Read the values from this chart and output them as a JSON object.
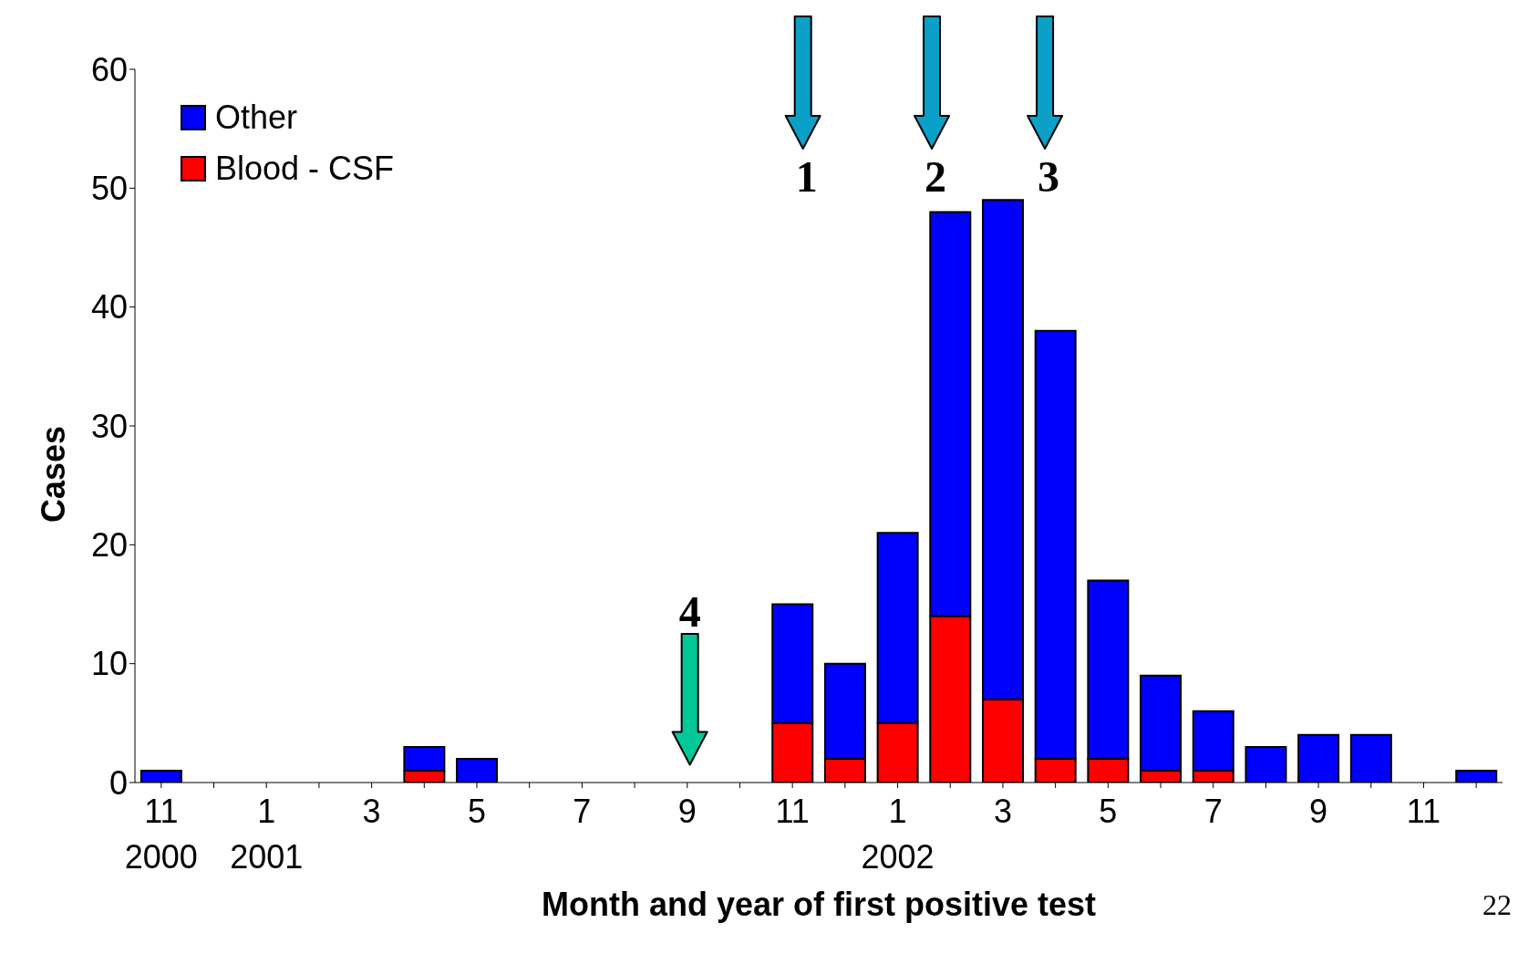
{
  "chart_data": {
    "type": "bar",
    "stacked": true,
    "xlabel": "Month and year of first positive test",
    "ylabel": "Cases",
    "categories": [
      "11\n2000",
      null,
      "1\n2001",
      null,
      "3",
      null,
      "5",
      null,
      "7",
      null,
      "9",
      null,
      "11",
      null,
      "1\n2002",
      null,
      "3",
      null,
      "5",
      null,
      "7",
      null,
      "9",
      null,
      "11",
      null
    ],
    "series": [
      {
        "name": "Blood - CSF",
        "color": "#ff0000",
        "values": [
          0,
          0,
          0,
          0,
          0,
          1,
          0,
          0,
          0,
          0,
          0,
          0,
          5,
          2,
          5,
          14,
          7,
          2,
          2,
          1,
          1,
          0,
          0,
          0,
          0,
          0
        ]
      },
      {
        "name": "Other",
        "color": "#0000ff",
        "values": [
          1,
          0,
          0,
          0,
          0,
          2,
          2,
          0,
          0,
          0,
          0,
          0,
          10,
          8,
          16,
          34,
          42,
          36,
          15,
          8,
          5,
          3,
          4,
          4,
          0,
          1
        ]
      }
    ],
    "ylim": [
      0,
      60
    ],
    "yticks": [
      0,
      10,
      20,
      30,
      40,
      50,
      60
    ],
    "legend": "top left",
    "annotations": [
      "1",
      "2",
      "3",
      "4",
      "22"
    ]
  }
}
